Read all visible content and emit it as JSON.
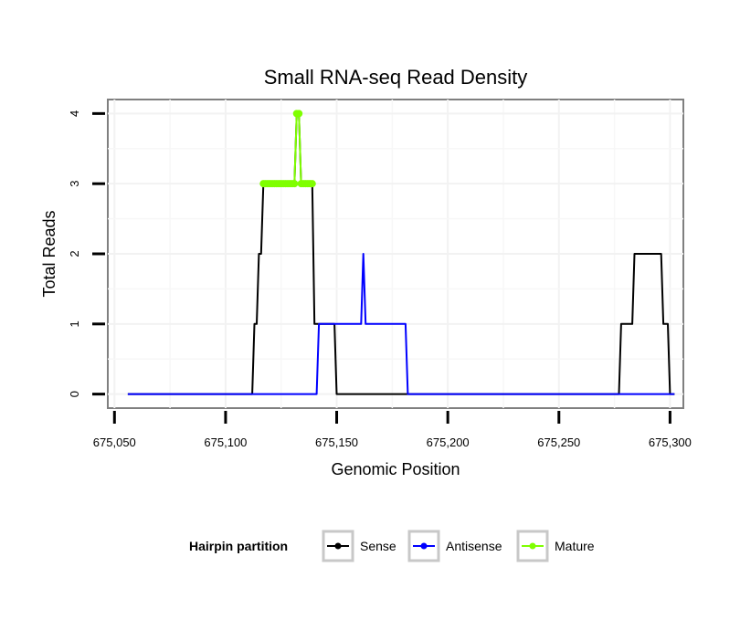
{
  "chart_data": {
    "type": "line",
    "title": "Small RNA-seq Read Density",
    "xlabel": "Genomic Position",
    "ylabel": "Total Reads",
    "xlim": [
      675047,
      675306
    ],
    "ylim": [
      -0.2,
      4.2
    ],
    "x_ticks": [
      675050,
      675100,
      675150,
      675200,
      675250,
      675300
    ],
    "x_tick_labels": [
      "675,050",
      "675,100",
      "675,150",
      "675,200",
      "675,250",
      "675,300"
    ],
    "y_ticks": [
      0,
      1,
      2,
      3,
      4
    ],
    "y_tick_labels": [
      "0",
      "1",
      "2",
      "3",
      "4"
    ],
    "grid": true,
    "legend": {
      "title": "Hairpin partition",
      "position": "bottom",
      "entries": [
        {
          "label": "Sense",
          "color": "#000000"
        },
        {
          "label": "Antisense",
          "color": "#0000ff"
        },
        {
          "label": "Mature",
          "color": "#7fff00"
        }
      ]
    },
    "series": [
      {
        "name": "Sense",
        "color": "#000000",
        "x": [
          675056,
          675112,
          675113,
          675114,
          675115,
          675116,
          675117,
          675131,
          675132,
          675133,
          675134,
          675139,
          675140,
          675141,
          675149,
          675150,
          675151,
          675277,
          675278,
          675283,
          675284,
          675296,
          675297,
          675299,
          675300,
          675302
        ],
        "y": [
          0,
          0,
          1,
          1,
          2,
          2,
          3,
          3,
          4,
          4,
          3,
          3,
          1,
          1,
          1,
          0,
          0,
          0,
          1,
          1,
          2,
          2,
          1,
          1,
          0,
          0
        ]
      },
      {
        "name": "Antisense",
        "color": "#0000ff",
        "x": [
          675056,
          675141,
          675142,
          675161,
          675162,
          675163,
          675181,
          675182,
          675302
        ],
        "y": [
          0,
          0,
          1,
          1,
          2,
          1,
          1,
          0,
          0
        ]
      },
      {
        "name": "Mature",
        "color": "#7fff00",
        "x": [
          675117,
          675118,
          675119,
          675120,
          675121,
          675122,
          675123,
          675124,
          675125,
          675126,
          675127,
          675128,
          675129,
          675130,
          675131,
          675132,
          675133,
          675134,
          675135,
          675136,
          675137,
          675138,
          675139
        ],
        "y": [
          3,
          3,
          3,
          3,
          3,
          3,
          3,
          3,
          3,
          3,
          3,
          3,
          3,
          3,
          3,
          4,
          4,
          3,
          3,
          3,
          3,
          3,
          3
        ]
      }
    ]
  }
}
